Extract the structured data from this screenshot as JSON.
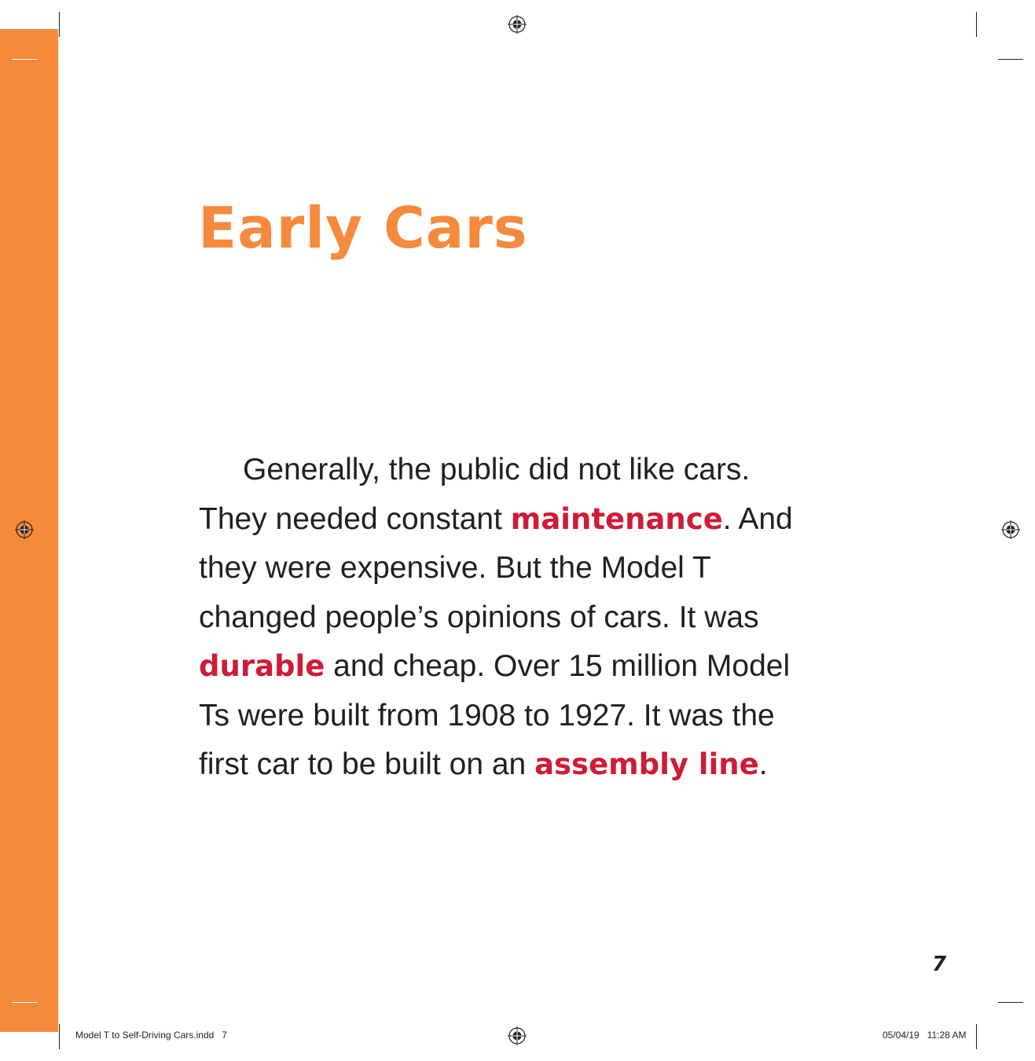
{
  "page": {
    "title": "Early Cars",
    "paragraph": [
      {
        "text1": "Generally, the public did not like cars."
      },
      {
        "text1": "They needed constant ",
        "term": "maintenance",
        "text2": ". And"
      },
      {
        "text1": "they were expensive. But the Model T"
      },
      {
        "text1": "changed people’s opinions of cars. It was"
      },
      {
        "term": "durable",
        "text2": " and cheap. Over 15 million Model"
      },
      {
        "text1": "Ts were built from 1908 to 1927. It was the"
      },
      {
        "text1": "first car to be built on an ",
        "term": "assembly line",
        "text2": "."
      }
    ],
    "page_number": "7"
  },
  "slug": {
    "file": "Model T to Self-Driving Cars.indd   7",
    "date": "05/04/19",
    "time": "11:28 AM"
  },
  "colors": {
    "accent_orange": "#f58a3d",
    "glossary_red": "#cf1b36",
    "text": "#231f20"
  },
  "icons": [
    "registration-mark-icon"
  ]
}
